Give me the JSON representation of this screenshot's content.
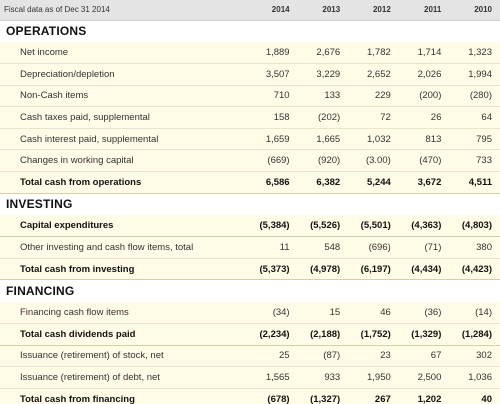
{
  "header": {
    "label": "Fiscal data as of Dec 31 2014",
    "years": [
      "2014",
      "2013",
      "2012",
      "2011",
      "2010"
    ]
  },
  "sections": [
    {
      "title": "OPERATIONS",
      "rows": [
        {
          "label": "Net income",
          "values": [
            "1,889",
            "2,676",
            "1,782",
            "1,714",
            "1,323"
          ],
          "total": false
        },
        {
          "label": "Depreciation/depletion",
          "values": [
            "3,507",
            "3,229",
            "2,652",
            "2,026",
            "1,994"
          ],
          "total": false
        },
        {
          "label": "Non-Cash items",
          "values": [
            "710",
            "133",
            "229",
            "(200)",
            "(280)"
          ],
          "total": false
        },
        {
          "label": "Cash taxes paid, supplemental",
          "values": [
            "158",
            "(202)",
            "72",
            "26",
            "64"
          ],
          "total": false
        },
        {
          "label": "Cash interest paid, supplemental",
          "values": [
            "1,659",
            "1,665",
            "1,032",
            "813",
            "795"
          ],
          "total": false
        },
        {
          "label": "Changes in working capital",
          "values": [
            "(669)",
            "(920)",
            "(3.00)",
            "(470)",
            "733"
          ],
          "total": false
        },
        {
          "label": "Total cash from operations",
          "values": [
            "6,586",
            "6,382",
            "5,244",
            "3,672",
            "4,511"
          ],
          "total": true
        }
      ]
    },
    {
      "title": "INVESTING",
      "rows": [
        {
          "label": "Capital expenditures",
          "values": [
            "(5,384)",
            "(5,526)",
            "(5,501)",
            "(4,363)",
            "(4,803)"
          ],
          "total": true
        },
        {
          "label": "Other investing and cash flow items, total",
          "values": [
            "11",
            "548",
            "(696)",
            "(71)",
            "380"
          ],
          "total": false
        },
        {
          "label": "Total cash from investing",
          "values": [
            "(5,373)",
            "(4,978)",
            "(6,197)",
            "(4,434)",
            "(4,423)"
          ],
          "total": true
        }
      ]
    },
    {
      "title": "FINANCING",
      "rows": [
        {
          "label": "Financing cash flow items",
          "values": [
            "(34)",
            "15",
            "46",
            "(36)",
            "(14)"
          ],
          "total": false
        },
        {
          "label": "Total cash dividends paid",
          "values": [
            "(2,234)",
            "(2,188)",
            "(1,752)",
            "(1,329)",
            "(1,284)"
          ],
          "total": true
        },
        {
          "label": "Issuance (retirement) of stock, net",
          "values": [
            "25",
            "(87)",
            "23",
            "67",
            "302"
          ],
          "total": false
        },
        {
          "label": "Issuance (retirement) of debt, net",
          "values": [
            "1,565",
            "933",
            "1,950",
            "2,500",
            "1,036"
          ],
          "total": false
        },
        {
          "label": "Total cash from financing",
          "values": [
            "(678)",
            "(1,327)",
            "267",
            "1,202",
            "40"
          ],
          "total": true
        }
      ]
    }
  ]
}
